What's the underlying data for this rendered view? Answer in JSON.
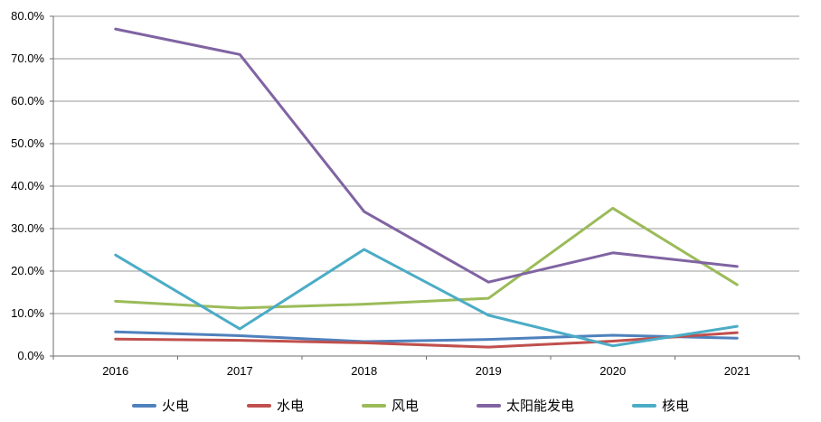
{
  "chart_data": {
    "type": "line",
    "title": "",
    "xlabel": "",
    "ylabel": "",
    "categories": [
      "2016",
      "2017",
      "2018",
      "2019",
      "2020",
      "2021"
    ],
    "y_tick_labels": [
      "0.0%",
      "10.0%",
      "20.0%",
      "30.0%",
      "40.0%",
      "50.0%",
      "60.0%",
      "70.0%",
      "80.0%"
    ],
    "ylim": [
      0,
      80
    ],
    "y_step": 10,
    "grid": "horizontal",
    "legend_position": "bottom",
    "series": [
      {
        "key": "thermal",
        "name": "火电",
        "color": "#4F81BD",
        "values": [
          5.7,
          4.8,
          3.4,
          3.9,
          4.9,
          4.2
        ]
      },
      {
        "key": "hydro",
        "name": "水电",
        "color": "#C0504D",
        "values": [
          4.0,
          3.7,
          3.1,
          2.1,
          3.5,
          5.5
        ]
      },
      {
        "key": "wind",
        "name": "风电",
        "color": "#9BBB59",
        "values": [
          12.9,
          11.3,
          12.2,
          13.6,
          34.8,
          16.8
        ]
      },
      {
        "key": "solar",
        "name": "太阳能发电",
        "color": "#8064A2",
        "values": [
          77.0,
          71.0,
          34.0,
          17.4,
          24.3,
          21.1
        ]
      },
      {
        "key": "nuclear",
        "name": "核电",
        "color": "#4BACC6",
        "values": [
          23.8,
          6.4,
          25.1,
          9.6,
          2.4,
          7.0
        ]
      }
    ],
    "colors": {
      "gridline": "#9A9A9A",
      "axis": "#6E6E6E",
      "text": "#000000",
      "background": "#FFFFFF"
    }
  }
}
